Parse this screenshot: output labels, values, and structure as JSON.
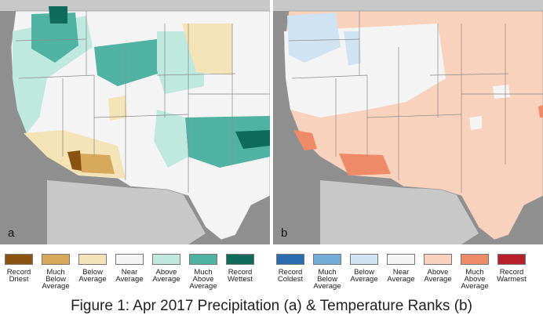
{
  "panels": [
    {
      "label": "a",
      "legend": [
        {
          "text": "Record\nDriest",
          "color": "#8a5312"
        },
        {
          "text": "Much\nBelow\nAverage",
          "color": "#d6a85a"
        },
        {
          "text": "Below\nAverage",
          "color": "#f4e3b6"
        },
        {
          "text": "Near\nAverage",
          "color": "#f4f4f4"
        },
        {
          "text": "Above\nAverage",
          "color": "#bfe8de"
        },
        {
          "text": "Much\nAbove\nAverage",
          "color": "#4fb2a2"
        },
        {
          "text": "Record\nWettest",
          "color": "#0f6b5a"
        }
      ]
    },
    {
      "label": "b",
      "legend": [
        {
          "text": "Record\nColdest",
          "color": "#2a6cb0"
        },
        {
          "text": "Much\nBelow\nAverage",
          "color": "#74acd8"
        },
        {
          "text": "Below\nAverage",
          "color": "#cfe3f2"
        },
        {
          "text": "Near\nAverage",
          "color": "#f4f4f4"
        },
        {
          "text": "Above\nAverage",
          "color": "#f9d2bd"
        },
        {
          "text": "Much\nAbove\nAverage",
          "color": "#ef8a68"
        },
        {
          "text": "Record\nWarmest",
          "color": "#b8212c"
        }
      ]
    }
  ],
  "caption": "Figure 1: Apr 2017 Precipitation (a) & Temperature Ranks (b)",
  "colors": {
    "ocean": "#8f8f8f",
    "land_outside": "#c8c8c8",
    "border": "#7a7a7a"
  }
}
